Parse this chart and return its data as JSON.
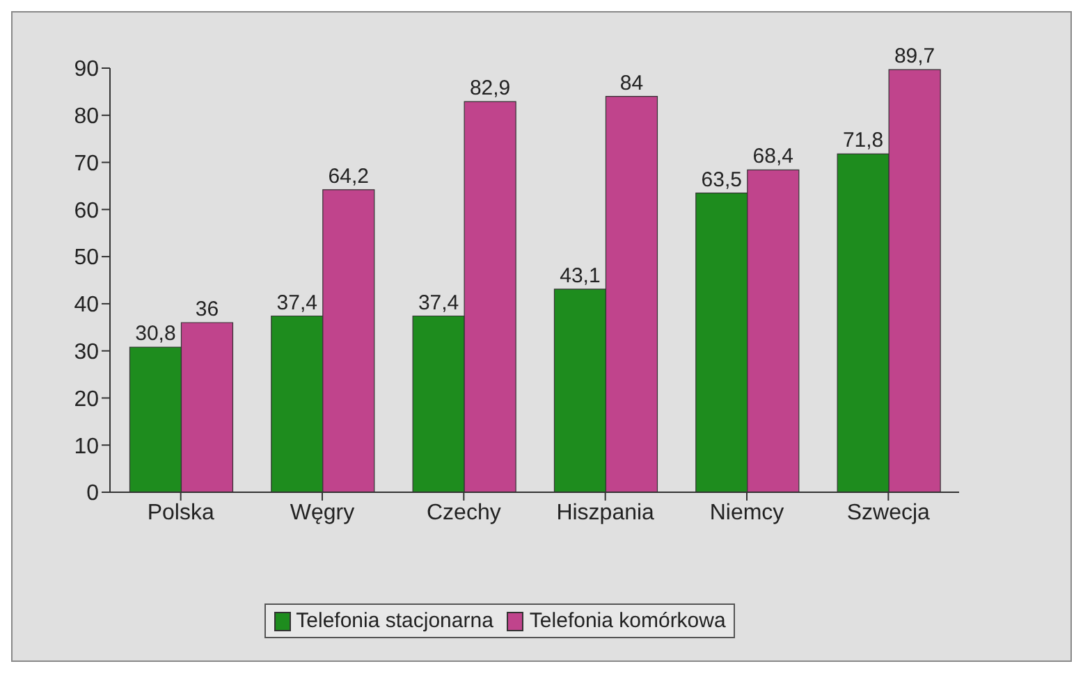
{
  "chart_data": {
    "type": "bar",
    "categories": [
      "Polska",
      "Węgry",
      "Czechy",
      "Hiszpania",
      "Niemcy",
      "Szwecja"
    ],
    "series": [
      {
        "name": "Telefonia stacjonarna",
        "color": "#1e8c1e",
        "values": [
          30.8,
          37.4,
          37.4,
          43.1,
          63.5,
          71.8
        ],
        "value_labels": [
          "30,8",
          "37,4",
          "37,4",
          "43,1",
          "63,5",
          "71,8"
        ]
      },
      {
        "name": "Telefonia komórkowa",
        "color": "#c0448c",
        "values": [
          36,
          64.2,
          82.9,
          84,
          68.4,
          89.7
        ],
        "value_labels": [
          "36",
          "64,2",
          "82,9",
          "84",
          "68,4",
          "89,7"
        ]
      }
    ],
    "ylim": [
      0,
      90
    ],
    "yticks": [
      0,
      10,
      20,
      30,
      40,
      50,
      60,
      70,
      80,
      90
    ],
    "grid": false,
    "legend": "bottom"
  }
}
